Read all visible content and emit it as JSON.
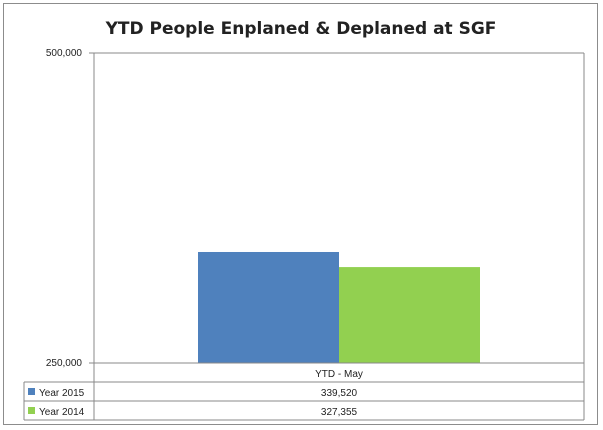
{
  "chart_data": {
    "type": "bar",
    "title": "YTD People Enplaned & Deplaned at SGF",
    "categories": [
      "YTD - May"
    ],
    "series": [
      {
        "name": "Year 2015",
        "values": [
          339520
        ],
        "value_labels": [
          "339,520"
        ],
        "color": "#4f81bd"
      },
      {
        "name": "Year 2014",
        "values": [
          327355
        ],
        "value_labels": [
          "327,355"
        ],
        "color": "#92d050"
      }
    ],
    "ylim": [
      250000,
      500000
    ],
    "yticks": [
      {
        "value": 250000,
        "label": "250,000"
      },
      {
        "value": 500000,
        "label": "500,000"
      }
    ],
    "grid": false,
    "legend": "data-table"
  }
}
